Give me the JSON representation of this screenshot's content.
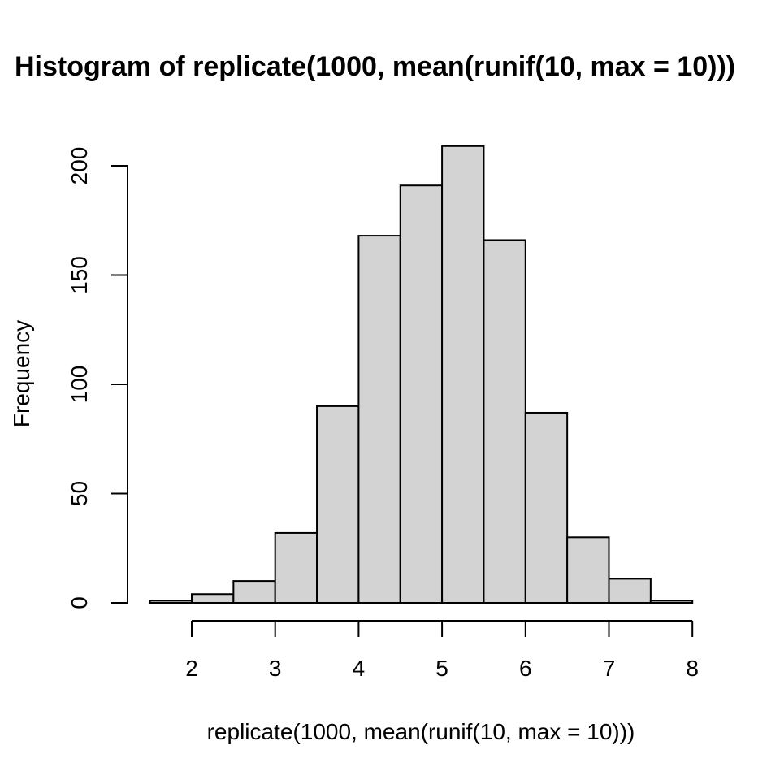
{
  "chart_data": {
    "type": "bar",
    "title": "Histogram of replicate(1000, mean(runif(10, max = 10)))",
    "xlabel": "replicate(1000, mean(runif(10, max = 10)))",
    "ylabel": "Frequency",
    "bins": [
      {
        "from": 1.5,
        "to": 2.0,
        "count": 1
      },
      {
        "from": 2.0,
        "to": 2.5,
        "count": 4
      },
      {
        "from": 2.5,
        "to": 3.0,
        "count": 10
      },
      {
        "from": 3.0,
        "to": 3.5,
        "count": 32
      },
      {
        "from": 3.5,
        "to": 4.0,
        "count": 90
      },
      {
        "from": 4.0,
        "to": 4.5,
        "count": 168
      },
      {
        "from": 4.5,
        "to": 5.0,
        "count": 191
      },
      {
        "from": 5.0,
        "to": 5.5,
        "count": 209
      },
      {
        "from": 5.5,
        "to": 6.0,
        "count": 166
      },
      {
        "from": 6.0,
        "to": 6.5,
        "count": 87
      },
      {
        "from": 6.5,
        "to": 7.0,
        "count": 30
      },
      {
        "from": 7.0,
        "to": 7.5,
        "count": 11
      },
      {
        "from": 7.5,
        "to": 8.0,
        "count": 1
      }
    ],
    "x_ticks": [
      2,
      3,
      4,
      5,
      6,
      7,
      8
    ],
    "y_ticks": [
      0,
      50,
      100,
      150,
      200
    ],
    "xlim": [
      1.5,
      8
    ],
    "ylim": [
      0,
      209
    ],
    "grid": false,
    "colors": {
      "bar_fill": "#d3d3d3",
      "bar_stroke": "#000000"
    }
  }
}
